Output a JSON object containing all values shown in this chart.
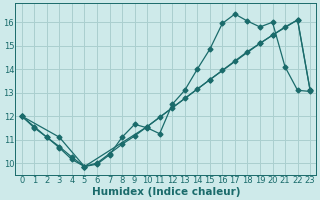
{
  "xlabel": "Humidex (Indice chaleur)",
  "ylabel": "",
  "xlim": [
    -0.5,
    23.5
  ],
  "ylim": [
    9.5,
    16.8
  ],
  "yticks": [
    10,
    11,
    12,
    13,
    14,
    15,
    16
  ],
  "xticks": [
    0,
    1,
    2,
    3,
    4,
    5,
    6,
    7,
    8,
    9,
    10,
    11,
    12,
    13,
    14,
    15,
    16,
    17,
    18,
    19,
    20,
    21,
    22,
    23
  ],
  "bg_color": "#ceeaea",
  "grid_color": "#aacfcf",
  "line_color": "#1a6b6b",
  "line1_x": [
    0,
    1,
    2,
    3,
    4,
    5,
    6,
    7,
    8,
    9,
    10,
    11,
    12,
    13,
    14,
    15,
    16,
    17,
    18,
    19,
    20,
    21,
    22,
    23
  ],
  "line1_y": [
    12.0,
    11.5,
    11.1,
    10.65,
    10.15,
    9.85,
    9.95,
    10.35,
    11.1,
    11.65,
    11.5,
    11.25,
    12.5,
    13.1,
    14.0,
    14.85,
    15.95,
    16.35,
    16.05,
    15.8,
    16.0,
    14.1,
    13.1,
    13.05
  ],
  "line2_x": [
    0,
    1,
    2,
    3,
    4,
    5,
    6,
    7,
    8,
    9,
    10,
    11,
    12,
    13,
    14,
    15,
    16,
    17,
    18,
    19,
    20,
    21,
    22,
    23
  ],
  "line2_y": [
    12.0,
    11.55,
    11.1,
    10.7,
    10.25,
    9.85,
    10.0,
    10.4,
    10.8,
    11.15,
    11.55,
    11.95,
    12.35,
    12.75,
    13.15,
    13.55,
    13.95,
    14.35,
    14.75,
    15.1,
    15.45,
    15.8,
    16.1,
    13.1
  ],
  "line3_x": [
    0,
    3,
    5,
    10,
    15,
    19,
    20,
    22,
    23
  ],
  "line3_y": [
    12.0,
    11.1,
    9.85,
    11.55,
    13.55,
    15.1,
    15.45,
    16.1,
    13.1
  ],
  "marker": "D",
  "markersize": 2.5,
  "linewidth": 0.9,
  "tick_fontsize": 6.0,
  "xlabel_fontsize": 7.5,
  "title_fontsize": 7
}
